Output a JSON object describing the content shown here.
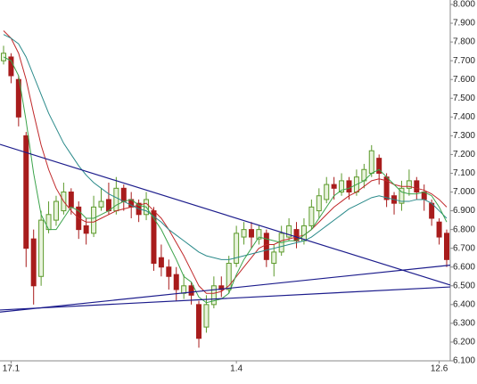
{
  "chart_data": {
    "type": "candlestick",
    "categories": [
      null,
      "17.1",
      null,
      null,
      null,
      null,
      null,
      null,
      null,
      null,
      null,
      null,
      null,
      null,
      null,
      null,
      null,
      null,
      null,
      null,
      null,
      null,
      null,
      null,
      null,
      null,
      null,
      null,
      null,
      null,
      null,
      "1.4",
      null,
      null,
      null,
      null,
      null,
      null,
      null,
      null,
      null,
      null,
      null,
      null,
      null,
      null,
      null,
      null,
      null,
      null,
      null,
      null,
      null,
      null,
      null,
      null,
      null,
      null,
      "12.6",
      null
    ],
    "open": [
      7.7,
      7.72,
      7.6,
      7.3,
      6.75,
      6.55,
      6.8,
      6.85,
      6.9,
      7.0,
      6.92,
      6.82,
      6.78,
      6.92,
      6.96,
      6.9,
      7.02,
      6.96,
      6.94,
      6.88,
      6.9,
      6.65,
      6.6,
      6.56,
      6.46,
      6.5,
      6.4,
      6.28,
      6.4,
      6.5,
      6.48,
      6.62,
      6.76,
      6.8,
      6.75,
      6.78,
      6.62,
      6.68,
      6.76,
      6.8,
      6.74,
      6.82,
      6.9,
      6.96,
      7.04,
      7.0,
      7.06,
      7.0,
      7.06,
      7.1,
      7.18,
      7.08,
      6.98,
      6.94,
      7.02,
      7.06,
      7.0,
      6.94,
      6.84,
      6.78
    ],
    "high": [
      7.78,
      7.74,
      7.62,
      7.32,
      6.8,
      6.9,
      6.95,
      6.98,
      7.05,
      7.02,
      6.95,
      6.86,
      6.98,
      7.02,
      7.05,
      7.08,
      7.04,
      7.0,
      6.96,
      7.0,
      6.92,
      6.72,
      6.64,
      6.6,
      6.56,
      6.52,
      6.42,
      6.45,
      6.55,
      6.55,
      6.66,
      6.82,
      6.84,
      6.84,
      6.82,
      6.8,
      6.72,
      6.82,
      6.86,
      6.84,
      6.86,
      6.96,
      7.02,
      7.08,
      7.08,
      7.1,
      7.08,
      7.12,
      7.15,
      7.25,
      7.2,
      7.1,
      7.0,
      7.06,
      7.12,
      7.08,
      7.04,
      6.96,
      6.86,
      6.8
    ],
    "low": [
      7.68,
      7.58,
      7.35,
      6.6,
      6.4,
      6.5,
      6.78,
      6.82,
      6.88,
      6.88,
      6.75,
      6.72,
      6.76,
      6.9,
      6.88,
      6.88,
      6.9,
      6.86,
      6.84,
      6.85,
      6.58,
      6.55,
      6.48,
      6.42,
      6.43,
      6.4,
      6.17,
      6.25,
      6.38,
      6.44,
      6.46,
      6.6,
      6.72,
      6.7,
      6.72,
      6.6,
      6.55,
      6.66,
      6.74,
      6.7,
      6.72,
      6.8,
      6.86,
      6.94,
      6.96,
      6.98,
      6.96,
      6.98,
      7.02,
      7.08,
      7.04,
      6.92,
      6.88,
      6.9,
      6.98,
      6.96,
      6.9,
      6.82,
      6.72,
      6.6
    ],
    "close": [
      7.74,
      7.62,
      7.4,
      6.7,
      6.5,
      6.85,
      6.88,
      6.95,
      7.0,
      6.92,
      6.8,
      6.78,
      6.92,
      6.95,
      6.9,
      7.02,
      6.95,
      6.92,
      6.88,
      6.96,
      6.62,
      6.6,
      6.55,
      6.48,
      6.5,
      6.45,
      6.22,
      6.4,
      6.5,
      6.48,
      6.62,
      6.78,
      6.8,
      6.76,
      6.8,
      6.64,
      6.68,
      6.78,
      6.82,
      6.74,
      6.82,
      6.92,
      6.98,
      7.04,
      7.02,
      7.06,
      7.0,
      7.08,
      7.12,
      7.22,
      7.1,
      6.96,
      6.94,
      7.02,
      7.06,
      7.0,
      6.96,
      6.86,
      6.76,
      6.64
    ],
    "up_color": "#5c9a2c",
    "down_color": "#a81c1c",
    "series": [
      {
        "color": "#c0282a",
        "values": [
          7.86,
          7.82,
          7.74,
          7.6,
          7.42,
          7.25,
          7.12,
          7.02,
          6.95,
          6.9,
          6.86,
          6.84,
          6.84,
          6.86,
          6.88,
          6.9,
          6.91,
          6.92,
          6.93,
          6.94,
          6.9,
          6.86,
          6.8,
          6.73,
          6.66,
          6.58,
          6.5,
          6.46,
          6.46,
          6.47,
          6.5,
          6.55,
          6.6,
          6.65,
          6.7,
          6.72,
          6.72,
          6.74,
          6.75,
          6.76,
          6.77,
          6.8,
          6.84,
          6.88,
          6.92,
          6.95,
          6.98,
          7.0,
          7.03,
          7.06,
          7.07,
          7.06,
          7.04,
          7.03,
          7.03,
          7.02,
          7.01,
          6.99,
          6.96,
          6.92
        ]
      },
      {
        "color": "#2a8a8a",
        "values": [
          7.84,
          7.82,
          7.79,
          7.72,
          7.62,
          7.52,
          7.42,
          7.34,
          7.26,
          7.2,
          7.14,
          7.09,
          7.05,
          7.02,
          6.99,
          6.97,
          6.95,
          6.93,
          6.91,
          6.9,
          6.87,
          6.84,
          6.8,
          6.77,
          6.74,
          6.71,
          6.68,
          6.66,
          6.65,
          6.64,
          6.64,
          6.65,
          6.66,
          6.67,
          6.68,
          6.69,
          6.7,
          6.71,
          6.72,
          6.73,
          6.74,
          6.76,
          6.79,
          6.82,
          6.85,
          6.88,
          6.91,
          6.93,
          6.95,
          6.97,
          6.98,
          6.97,
          6.96,
          6.95,
          6.95,
          6.96,
          6.96,
          6.94,
          6.9,
          6.86
        ]
      },
      {
        "color": "#3aa34a",
        "values": [
          7.72,
          7.7,
          7.62,
          7.38,
          7.1,
          6.88,
          6.8,
          6.8,
          6.86,
          6.92,
          6.9,
          6.86,
          6.86,
          6.88,
          6.9,
          6.93,
          6.95,
          6.96,
          6.93,
          6.92,
          6.86,
          6.8,
          6.72,
          6.64,
          6.55,
          6.52,
          6.44,
          6.41,
          6.42,
          6.43,
          6.46,
          6.56,
          6.64,
          6.7,
          6.76,
          6.75,
          6.74,
          6.73,
          6.74,
          6.74,
          6.77,
          6.8,
          6.86,
          6.92,
          6.98,
          7.01,
          7.02,
          7.04,
          7.06,
          7.1,
          7.12,
          7.08,
          7.04,
          7.0,
          6.99,
          6.99,
          7.0,
          6.98,
          6.92,
          6.84
        ]
      }
    ],
    "trendlines": [
      {
        "color": "#1c1c8c",
        "start": 7.254,
        "end": 6.504
      },
      {
        "color": "#1c1c8c",
        "start": 6.371,
        "end": 6.494
      },
      {
        "color": "#1c1c8c",
        "start": 6.36,
        "end": 6.61
      }
    ],
    "ylim": [
      6.1,
      8.0
    ],
    "yticks": [
      {
        "value": 8.0,
        "label": "8.000"
      },
      {
        "value": 7.9,
        "label": "7.900"
      },
      {
        "value": 7.8,
        "label": "7.800"
      },
      {
        "value": 7.7,
        "label": "7.700"
      },
      {
        "value": 7.6,
        "label": "7.600"
      },
      {
        "value": 7.5,
        "label": "7.500"
      },
      {
        "value": 7.4,
        "label": "7.400"
      },
      {
        "value": 7.3,
        "label": "7.300"
      },
      {
        "value": 7.2,
        "label": "7.200"
      },
      {
        "value": 7.1,
        "label": "7.100"
      },
      {
        "value": 7.0,
        "label": "7.000"
      },
      {
        "value": 6.9,
        "label": "6.900"
      },
      {
        "value": 6.8,
        "label": "6.800"
      },
      {
        "value": 6.7,
        "label": "6.700"
      },
      {
        "value": 6.6,
        "label": "6.600"
      },
      {
        "value": 6.5,
        "label": "6.500"
      },
      {
        "value": 6.4,
        "label": "6.400"
      },
      {
        "value": 6.3,
        "label": "6.300"
      },
      {
        "value": 6.2,
        "label": "6.200"
      },
      {
        "value": 6.1,
        "label": "6.100"
      }
    ]
  }
}
